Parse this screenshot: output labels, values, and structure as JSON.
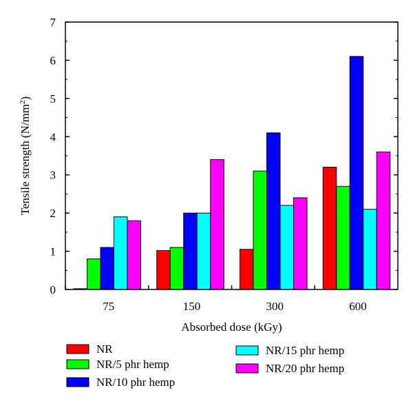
{
  "chart_data": {
    "type": "bar",
    "title": "",
    "xlabel": "Absorbed dose (kGy)",
    "ylabel_main": "Tensile strength (N/mm",
    "ylabel_sup": "2",
    "ylabel_close": ")",
    "ylim": [
      0,
      7
    ],
    "yticks": [
      "0",
      "1",
      "2",
      "3",
      "4",
      "5",
      "6",
      "7"
    ],
    "categories": [
      "75",
      "150",
      "300",
      "600"
    ],
    "series": [
      {
        "name": "NR",
        "color": "#ff0000",
        "values": [
          0.02,
          1.02,
          1.05,
          3.2
        ]
      },
      {
        "name": "NR/5 phr hemp",
        "color": "#00ff00",
        "values": [
          0.8,
          1.1,
          3.1,
          2.7
        ]
      },
      {
        "name": "NR/10 phr hemp",
        "color": "#0000ff",
        "values": [
          1.1,
          2.0,
          4.1,
          6.1
        ]
      },
      {
        "name": "NR/15 phr hemp",
        "color": "#00ffff",
        "values": [
          1.9,
          2.0,
          2.2,
          2.1
        ]
      },
      {
        "name": "NR/20 phr hemp",
        "color": "#ff00ff",
        "values": [
          1.8,
          3.4,
          2.4,
          3.6
        ]
      }
    ],
    "grid": false,
    "legend_position": "bottom"
  }
}
